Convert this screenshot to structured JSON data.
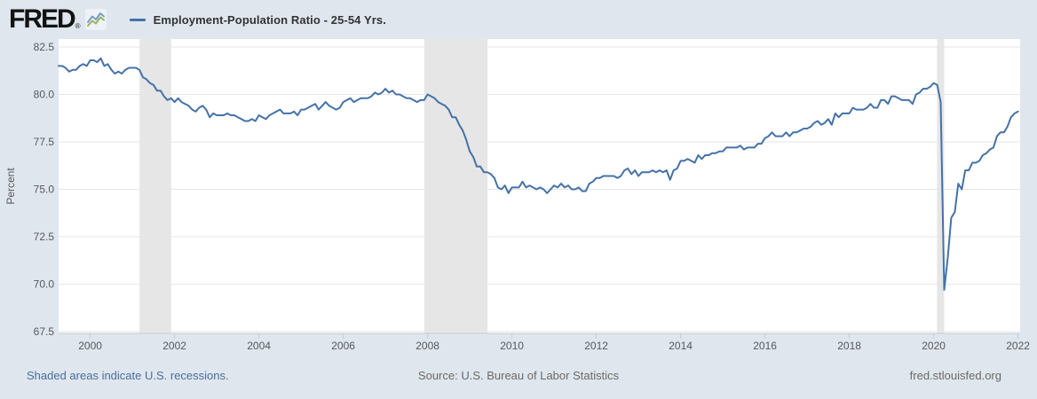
{
  "header": {
    "logo_text": "FRED",
    "logo_registered": "®",
    "legend": {
      "series_label": "Employment-Population Ratio - 25-54 Yrs.",
      "series_color": "#4572a7"
    }
  },
  "footer": {
    "left_link": "Shaded areas indicate U.S. recessions.",
    "source": "Source: U.S. Bureau of Labor Statistics",
    "site": "fred.stlouisfed.org"
  },
  "colors": {
    "background": "#dfe6ee",
    "plot_background": "#ffffff",
    "series_line": "#4572a7",
    "recession_band": "#e6e6e6",
    "gridline": "#e6e6e6",
    "axis_line": "#c6ccd4",
    "tick_label": "#58595b",
    "footer_link": "#4a6f9e"
  },
  "chart_data": {
    "type": "line",
    "title": "Employment-Population Ratio - 25-54 Yrs.",
    "xlabel": "",
    "ylabel": "Percent",
    "frequency": "Monthly",
    "observation_start": "1999-04",
    "observation_end": "2022-01",
    "x_start": 1999.25,
    "x_step": 0.0833333,
    "x_range": [
      1999.25,
      2022.05
    ],
    "x_ticks": [
      2000,
      2002,
      2004,
      2006,
      2008,
      2010,
      2012,
      2014,
      2016,
      2018,
      2020,
      2022
    ],
    "y_ticks": [
      67.5,
      70.0,
      72.5,
      75.0,
      77.5,
      80.0,
      82.5
    ],
    "ylim": [
      67.5,
      83.0
    ],
    "grid": true,
    "legend_position": "top-left",
    "series_color": "#4572a7",
    "recessions": [
      {
        "start": 2001.17,
        "end": 2001.92
      },
      {
        "start": 2007.92,
        "end": 2009.42
      },
      {
        "start": 2020.08,
        "end": 2020.25
      }
    ],
    "values": [
      81.5,
      81.5,
      81.4,
      81.2,
      81.3,
      81.3,
      81.5,
      81.6,
      81.5,
      81.8,
      81.8,
      81.7,
      81.9,
      81.5,
      81.6,
      81.3,
      81.1,
      81.2,
      81.1,
      81.3,
      81.4,
      81.4,
      81.4,
      81.3,
      80.9,
      80.8,
      80.6,
      80.5,
      80.2,
      80.2,
      79.9,
      79.7,
      79.8,
      79.6,
      79.8,
      79.6,
      79.5,
      79.4,
      79.2,
      79.1,
      79.3,
      79.4,
      79.2,
      78.8,
      79.0,
      78.9,
      78.9,
      78.9,
      79.0,
      78.9,
      78.9,
      78.8,
      78.7,
      78.6,
      78.6,
      78.7,
      78.6,
      78.9,
      78.8,
      78.7,
      78.9,
      79.0,
      79.1,
      79.2,
      79.0,
      79.0,
      79.0,
      79.1,
      78.9,
      79.2,
      79.2,
      79.3,
      79.4,
      79.5,
      79.2,
      79.4,
      79.6,
      79.4,
      79.3,
      79.2,
      79.3,
      79.6,
      79.7,
      79.8,
      79.6,
      79.7,
      79.8,
      79.8,
      79.8,
      79.9,
      80.1,
      80.0,
      80.1,
      80.3,
      80.1,
      80.2,
      80.0,
      80.0,
      79.9,
      79.8,
      79.8,
      79.7,
      79.6,
      79.7,
      79.7,
      80.0,
      79.9,
      79.8,
      79.6,
      79.5,
      79.4,
      79.2,
      78.8,
      78.8,
      78.4,
      78.1,
      77.6,
      77.0,
      76.7,
      76.2,
      76.2,
      75.9,
      75.9,
      75.8,
      75.6,
      75.1,
      75.0,
      75.2,
      74.8,
      75.1,
      75.1,
      75.1,
      75.4,
      75.1,
      75.2,
      75.1,
      75.0,
      75.1,
      75.0,
      74.8,
      75.0,
      75.2,
      75.1,
      75.3,
      75.1,
      75.2,
      75.0,
      75.0,
      75.1,
      74.9,
      74.9,
      75.3,
      75.4,
      75.6,
      75.6,
      75.7,
      75.7,
      75.7,
      75.7,
      75.6,
      75.7,
      76.0,
      76.1,
      75.8,
      76.0,
      75.7,
      75.9,
      75.9,
      75.9,
      76.0,
      75.9,
      76.0,
      75.9,
      76.0,
      75.5,
      76.0,
      76.1,
      76.5,
      76.5,
      76.6,
      76.5,
      76.4,
      76.8,
      76.6,
      76.8,
      76.8,
      76.9,
      76.9,
      77.0,
      77.0,
      77.2,
      77.2,
      77.2,
      77.2,
      77.3,
      77.1,
      77.2,
      77.2,
      77.2,
      77.4,
      77.4,
      77.7,
      77.8,
      78.0,
      77.8,
      77.8,
      77.8,
      78.0,
      77.8,
      78.0,
      78.0,
      78.1,
      78.2,
      78.2,
      78.3,
      78.5,
      78.6,
      78.4,
      78.5,
      78.7,
      78.4,
      79.0,
      78.8,
      79.0,
      79.0,
      79.0,
      79.3,
      79.2,
      79.2,
      79.2,
      79.3,
      79.5,
      79.3,
      79.3,
      79.7,
      79.7,
      79.5,
      79.9,
      79.9,
      79.8,
      79.7,
      79.7,
      79.7,
      79.5,
      80.0,
      80.1,
      80.3,
      80.3,
      80.4,
      80.6,
      80.5,
      79.6,
      69.7,
      71.4,
      73.5,
      73.8,
      75.3,
      75.0,
      76.0,
      76.0,
      76.4,
      76.4,
      76.5,
      76.8,
      76.9,
      77.1,
      77.2,
      77.8,
      78.0,
      78.0,
      78.3,
      78.8,
      79.0,
      79.1
    ]
  }
}
